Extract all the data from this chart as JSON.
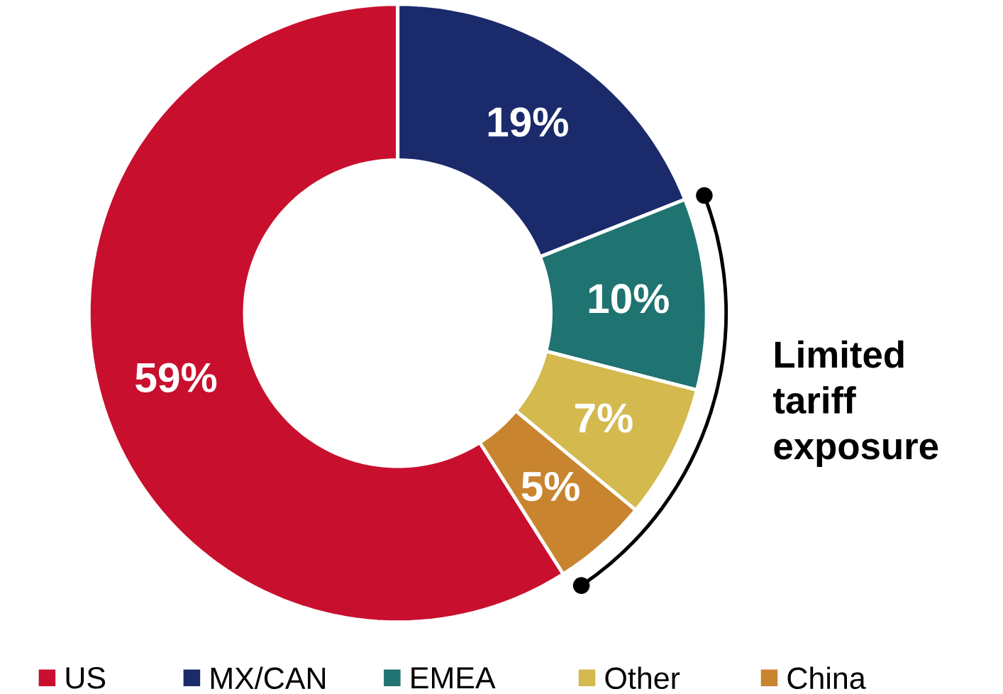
{
  "chart_data": {
    "type": "donut",
    "categories": [
      "US",
      "MX/CAN",
      "EMEA",
      "Other",
      "China"
    ],
    "values": [
      59,
      19,
      10,
      7,
      5
    ],
    "value_labels": [
      "59%",
      "19%",
      "10%",
      "7%",
      "5%"
    ],
    "colors": [
      "#c8102e",
      "#1b2a6b",
      "#1f7370",
      "#d4b94f",
      "#c8842e"
    ],
    "legend": "bottom",
    "annotations": [
      "Limited tariff exposure"
    ]
  }
}
